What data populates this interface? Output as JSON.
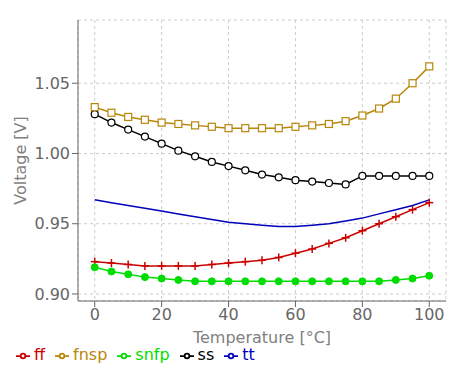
{
  "chart_data": {
    "type": "line",
    "x_label": "Temperature [°C]",
    "y_label": "Voltage [V]",
    "x": [
      0,
      5,
      10,
      15,
      20,
      25,
      30,
      35,
      40,
      45,
      50,
      55,
      60,
      65,
      70,
      75,
      80,
      85,
      90,
      95,
      100
    ],
    "xlim": [
      -5,
      105
    ],
    "xticks": [
      0,
      20,
      40,
      60,
      80,
      100
    ],
    "ylim": [
      0.895,
      1.095
    ],
    "yticks": [
      {
        "value": 0.9,
        "label": "0.90"
      },
      0.95,
      {
        "value": 1.0,
        "label": "1.00"
      },
      1.05
    ],
    "grid": true,
    "legend": "lower left",
    "series": [
      {
        "name": "tt",
        "color": "#0000bb",
        "marker": "none",
        "line_style": "solid",
        "values": [
          0.967,
          0.965,
          0.963,
          0.961,
          0.959,
          0.957,
          0.955,
          0.953,
          0.951,
          0.95,
          0.949,
          0.948,
          0.948,
          0.949,
          0.95,
          0.952,
          0.954,
          0.957,
          0.96,
          0.963,
          0.967
        ]
      },
      {
        "name": "ff",
        "color": "#cc0000",
        "marker": "plus",
        "line_style": "solid",
        "values": [
          0.923,
          0.922,
          0.921,
          0.92,
          0.92,
          0.92,
          0.92,
          0.921,
          0.922,
          0.923,
          0.924,
          0.926,
          0.929,
          0.932,
          0.936,
          0.94,
          0.945,
          0.95,
          0.955,
          0.96,
          0.965
        ]
      },
      {
        "name": "ss",
        "color": "#000000",
        "marker": "open_circle",
        "line_style": "solid",
        "values": [
          1.028,
          1.022,
          1.017,
          1.012,
          1.007,
          1.002,
          0.998,
          0.994,
          0.991,
          0.988,
          0.985,
          0.983,
          0.981,
          0.98,
          0.979,
          0.978,
          0.984,
          0.984,
          0.984,
          0.984,
          0.984
        ]
      },
      {
        "name": "snfp",
        "color": "#00dd00",
        "marker": "filled_circle",
        "line_style": "solid",
        "values": [
          0.919,
          0.916,
          0.914,
          0.912,
          0.911,
          0.91,
          0.909,
          0.909,
          0.909,
          0.909,
          0.909,
          0.909,
          0.909,
          0.909,
          0.909,
          0.909,
          0.909,
          0.909,
          0.91,
          0.911,
          0.913
        ]
      },
      {
        "name": "fnsp",
        "color": "#b8860b",
        "marker": "open_square",
        "line_style": "solid",
        "values": [
          1.033,
          1.029,
          1.026,
          1.024,
          1.022,
          1.021,
          1.02,
          1.019,
          1.018,
          1.018,
          1.018,
          1.018,
          1.019,
          1.02,
          1.021,
          1.023,
          1.027,
          1.032,
          1.039,
          1.05,
          1.062
        ]
      }
    ]
  }
}
